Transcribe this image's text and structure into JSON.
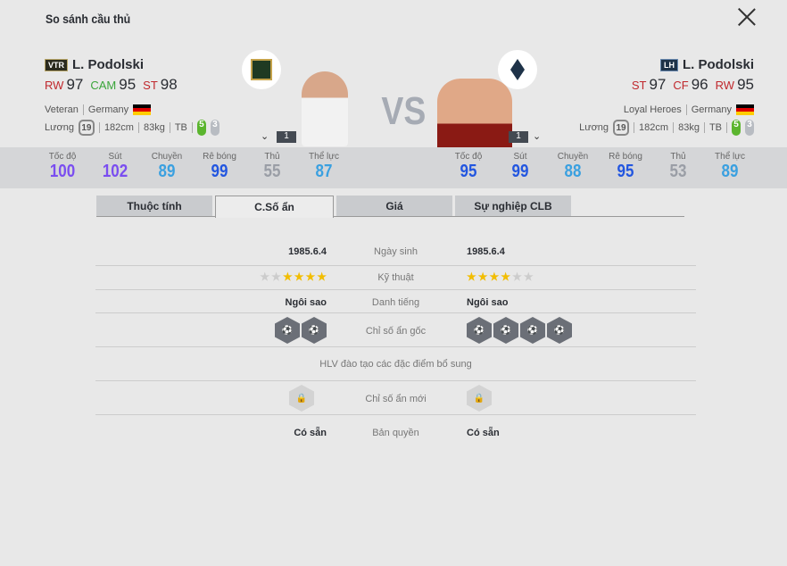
{
  "title": "So sánh cầu thủ",
  "vs": "VS",
  "left": {
    "badge": "VTR",
    "name": "L. Podolski",
    "positions": [
      {
        "pos": "RW",
        "ovr": "97",
        "color": "#c0282d"
      },
      {
        "pos": "CAM",
        "ovr": "95",
        "color": "#3aa53a"
      },
      {
        "pos": "ST",
        "ovr": "98",
        "color": "#c0282d"
      }
    ],
    "season": "Veteran",
    "nation": "Germany",
    "salary_label": "Lương",
    "salary": "19",
    "height": "182cm",
    "weight": "83kg",
    "body": "TB",
    "weak_foot": "5",
    "skill": "3",
    "level": "1",
    "stats": [
      {
        "label": "Tốc độ",
        "value": "100",
        "color": "#7a4df0"
      },
      {
        "label": "Sút",
        "value": "102",
        "color": "#7a4df0"
      },
      {
        "label": "Chuyền",
        "value": "89",
        "color": "#3aa0e0"
      },
      {
        "label": "Rê bóng",
        "value": "99",
        "color": "#2256e0"
      },
      {
        "label": "Thủ",
        "value": "55",
        "color": "#9a9ea6"
      },
      {
        "label": "Thể lực",
        "value": "87",
        "color": "#3aa0e0"
      }
    ]
  },
  "right": {
    "badge": "LH",
    "name": "L. Podolski",
    "positions": [
      {
        "pos": "ST",
        "ovr": "97",
        "color": "#c0282d"
      },
      {
        "pos": "CF",
        "ovr": "96",
        "color": "#c0282d"
      },
      {
        "pos": "RW",
        "ovr": "95",
        "color": "#c0282d"
      }
    ],
    "season": "Loyal Heroes",
    "nation": "Germany",
    "salary_label": "Lương",
    "salary": "19",
    "height": "182cm",
    "weight": "83kg",
    "body": "TB",
    "weak_foot": "5",
    "skill": "3",
    "level": "1",
    "stats": [
      {
        "label": "Tốc độ",
        "value": "95",
        "color": "#2256e0"
      },
      {
        "label": "Sút",
        "value": "99",
        "color": "#2256e0"
      },
      {
        "label": "Chuyền",
        "value": "88",
        "color": "#3aa0e0"
      },
      {
        "label": "Rê bóng",
        "value": "95",
        "color": "#2256e0"
      },
      {
        "label": "Thủ",
        "value": "53",
        "color": "#9a9ea6"
      },
      {
        "label": "Thể lực",
        "value": "89",
        "color": "#3aa0e0"
      }
    ]
  },
  "tabs": [
    {
      "label": "Thuộc tính"
    },
    {
      "label": "C.Số ẩn",
      "active": true
    },
    {
      "label": "Giá"
    },
    {
      "label": "Sự nghiệp CLB"
    }
  ],
  "rows": {
    "birth": {
      "label": "Ngày sinh",
      "left": "1985.6.4",
      "right": "1985.6.4"
    },
    "skill": {
      "label": "Kỹ thuật",
      "left_stars": 4,
      "right_stars": 4,
      "max": 6
    },
    "fame": {
      "label": "Danh tiếng",
      "left": "Ngôi sao",
      "right": "Ngôi sao"
    },
    "traits": {
      "label": "Chỉ số ẩn gốc",
      "left": [
        "finesse-shot-icon",
        "power-header-icon"
      ],
      "right": [
        "speed-dribbler-icon",
        "flair-icon",
        "power-header-icon",
        "finesse-shot-icon"
      ]
    },
    "coach": {
      "label": "HLV đào tạo các đặc điểm bổ sung"
    },
    "new_traits": {
      "label": "Chỉ số ẩn mới"
    },
    "license": {
      "label": "Bản quyền",
      "left": "Có sẵn",
      "right": "Có sẵn"
    }
  }
}
